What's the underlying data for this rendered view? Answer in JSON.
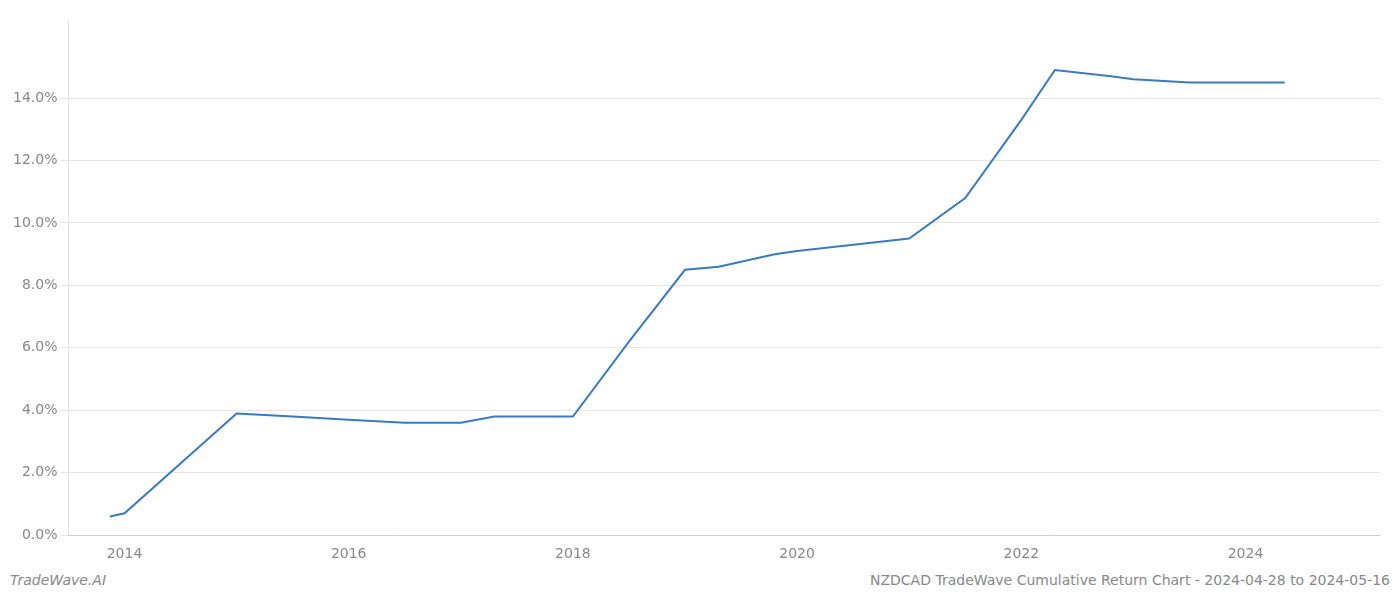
{
  "chart_data": {
    "type": "line",
    "x": [
      2013.87,
      2014.0,
      2015.0,
      2015.5,
      2016.0,
      2016.5,
      2017.0,
      2017.3,
      2018.0,
      2018.5,
      2019.0,
      2019.3,
      2019.8,
      2020.0,
      2020.5,
      2021.0,
      2021.5,
      2022.0,
      2022.3,
      2022.8,
      2023.0,
      2023.5,
      2024.0,
      2024.35
    ],
    "values": [
      0.006,
      0.007,
      0.039,
      0.038,
      0.037,
      0.036,
      0.036,
      0.038,
      0.038,
      0.062,
      0.085,
      0.086,
      0.09,
      0.091,
      0.093,
      0.095,
      0.108,
      0.133,
      0.149,
      0.147,
      0.146,
      0.145,
      0.145,
      0.145
    ],
    "color": "#3a7abf",
    "xlim": [
      2013.5,
      2025.2
    ],
    "xticks": [
      2014,
      2016,
      2018,
      2020,
      2022,
      2024
    ],
    "ylim": [
      0.0,
      0.165
    ],
    "yticks": [
      {
        "value": 0.0,
        "label": "0.0%"
      },
      {
        "value": 0.02,
        "label": "2.0%"
      },
      {
        "value": 0.04,
        "label": "4.0%"
      },
      {
        "value": 0.06,
        "label": "6.0%"
      },
      {
        "value": 0.08,
        "label": "8.0%"
      },
      {
        "value": 0.1,
        "label": "10.0%"
      },
      {
        "value": 0.12,
        "label": "12.0%"
      },
      {
        "value": 0.14,
        "label": "14.0%"
      }
    ],
    "grid": "y",
    "annotations": [
      "TradeWave.AI",
      "NZDCAD TradeWave Cumulative Return Chart - 2024-04-28 to 2024-05-16"
    ]
  }
}
